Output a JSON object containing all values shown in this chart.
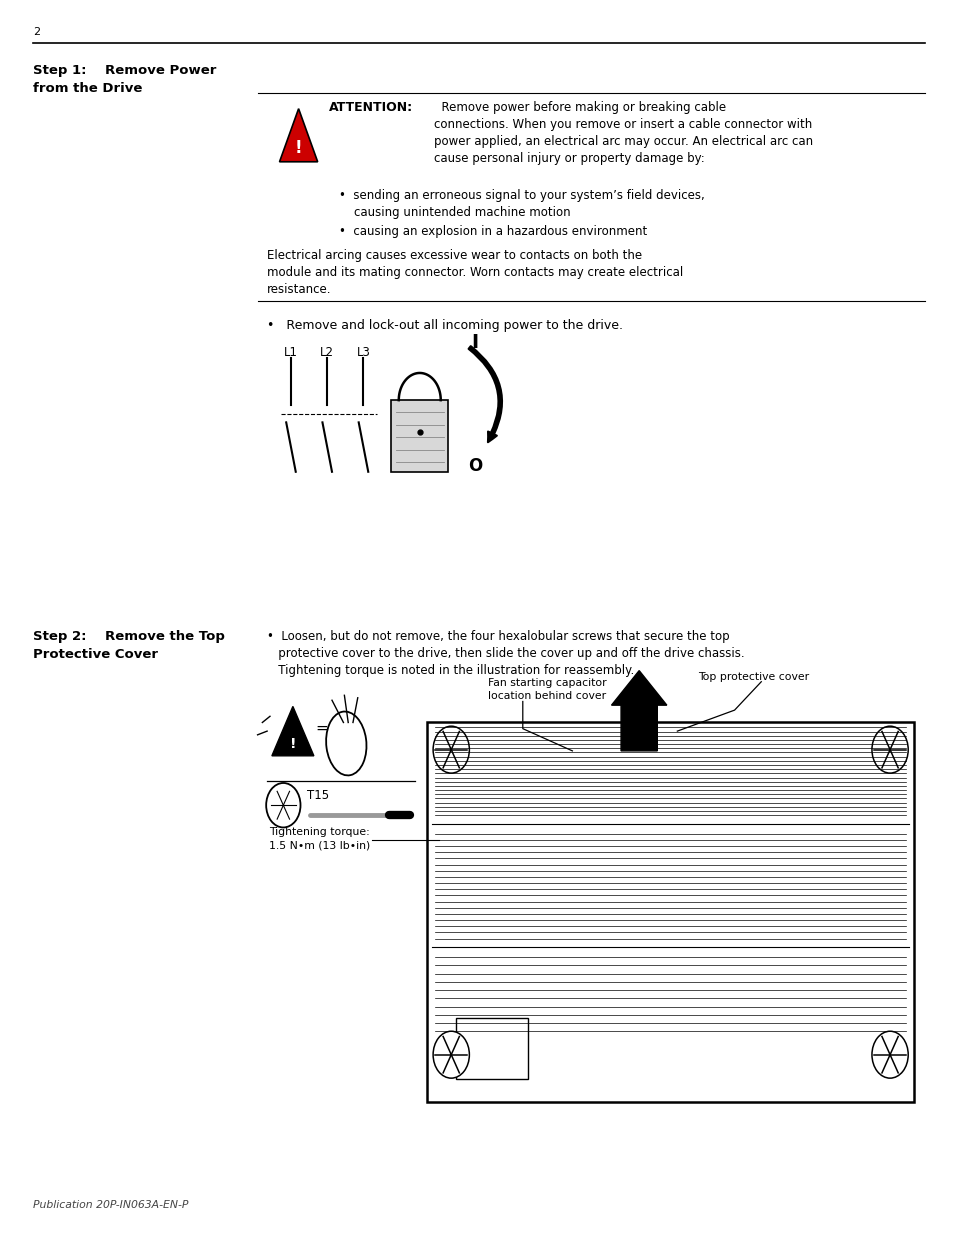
{
  "page_number": "2",
  "bg_color": "#ffffff",
  "text_color": "#000000",
  "step1_heading": "Step 1:    Remove Power\nfrom the Drive",
  "attention_bold": "ATTENTION:",
  "attention_text": "  Remove power before making or breaking cable\nconnections. When you remove or insert a cable connector with\npower applied, an electrical arc may occur. An electrical arc can\ncause personal injury or property damage by:",
  "bullet1": "•  sending an erroneous signal to your system’s field devices,\n    causing unintended machine motion",
  "bullet2": "•  causing an explosion in a hazardous environment",
  "electrical_text": "Electrical arcing causes excessive wear to contacts on both the\nmodule and its mating connector. Worn contacts may create electrical\nresistance.",
  "step1_bullet": "•   Remove and lock-out all incoming power to the drive.",
  "step2_heading": "Step 2:    Remove the Top\nProtective Cover",
  "step2_bullet": "•  Loosen, but do not remove, the four hexalobular screws that secure the top\n   protective cover to the drive, then slide the cover up and off the drive chassis.\n   Tightening torque is noted in the illustration for reassembly.",
  "label_fan": "Fan starting capacitor\nlocation behind cover",
  "label_top_cover": "Top protective cover",
  "label_tightening": "Tightening torque:\n1.5 N•m (13 lb•in)",
  "label_t15": "T15",
  "publication": "Publication 20P-IN063A-EN-P"
}
